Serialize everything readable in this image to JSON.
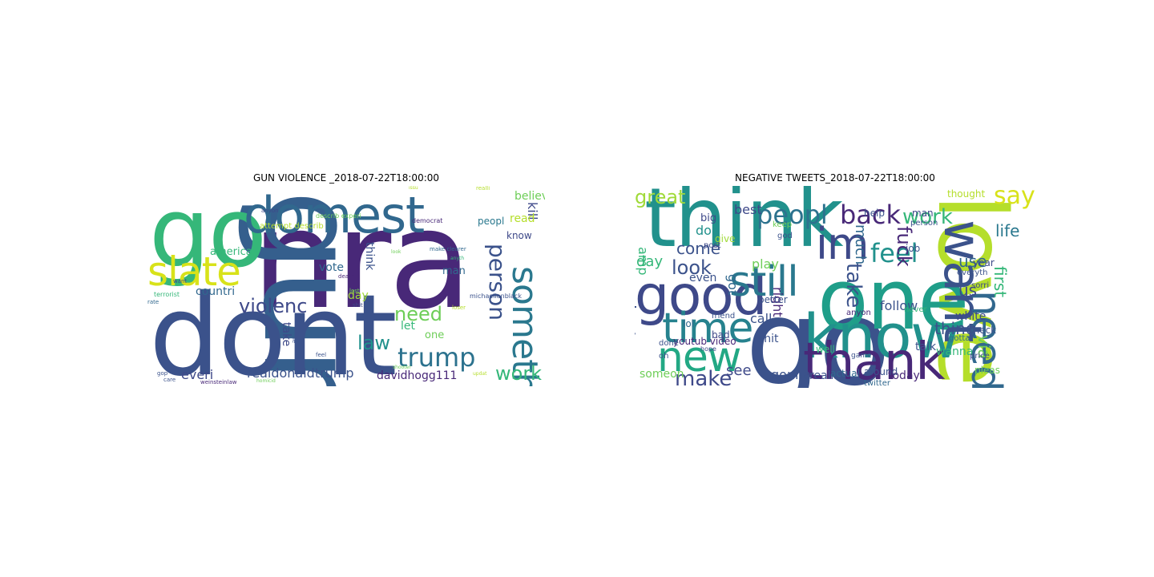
{
  "panels": [
    {
      "title": "GUN VIOLENCE _2018-07-22T18:00:00",
      "words": [
        {
          "text": "nra",
          "color": "#482878"
        },
        {
          "text": "gun",
          "color": "#355f8d"
        },
        {
          "text": "dont",
          "color": "#3b528b"
        },
        {
          "text": "go",
          "color": "#35b779"
        },
        {
          "text": "domest",
          "color": "#31688e"
        },
        {
          "text": "slate",
          "color": "#d8e219"
        },
        {
          "text": "someth",
          "color": "#2a788e"
        },
        {
          "text": "trump",
          "color": "#2c728e"
        },
        {
          "text": "violenc",
          "color": "#3e4989"
        },
        {
          "text": "person",
          "color": "#3b528b"
        },
        {
          "text": "need",
          "color": "#6ece58"
        },
        {
          "text": "law",
          "color": "#21918c"
        },
        {
          "text": "work",
          "color": "#35b779"
        },
        {
          "text": "realdonaldtrump",
          "color": "#3b528b"
        },
        {
          "text": "everi",
          "color": "#3e4989"
        },
        {
          "text": "davidhogg111",
          "color": "#482878"
        },
        {
          "text": "kill",
          "color": "#3e4989"
        },
        {
          "text": "believ",
          "color": "#6ece58"
        },
        {
          "text": "read",
          "color": "#b5de2b"
        },
        {
          "text": "peopl",
          "color": "#2a788e"
        },
        {
          "text": "know",
          "color": "#3e4989"
        },
        {
          "text": "countri",
          "color": "#31688e"
        },
        {
          "text": "america",
          "color": "#35b779"
        },
        {
          "text": "vote",
          "color": "#31688e"
        },
        {
          "text": "think",
          "color": "#3b528b"
        },
        {
          "text": "man",
          "color": "#31688e"
        },
        {
          "text": "day",
          "color": "#a0da39"
        },
        {
          "text": "let",
          "color": "#35b779"
        },
        {
          "text": "one",
          "color": "#6ece58"
        },
        {
          "text": "take",
          "color": "#3e4989"
        },
        {
          "text": "attempt describ",
          "color": "#b5de2b"
        },
        {
          "text": "describ experi",
          "color": "#6ece58"
        },
        {
          "text": "democrat",
          "color": "#482878"
        },
        {
          "text": "make clearer",
          "color": "#31688e"
        },
        {
          "text": "michaelianblack",
          "color": "#3b528b"
        },
        {
          "text": "terrorist",
          "color": "#35b779"
        },
        {
          "text": "anyon",
          "color": "#3e4989"
        },
        {
          "text": "want",
          "color": "#3e4989"
        },
        {
          "text": "death",
          "color": "#482878"
        },
        {
          "text": "lost",
          "color": "#6ece58"
        },
        {
          "text": "shit",
          "color": "#3e4989"
        },
        {
          "text": "rate",
          "color": "#31688e"
        },
        {
          "text": "gop",
          "color": "#3b528b"
        },
        {
          "text": "care",
          "color": "#3b528b"
        },
        {
          "text": "weinsteinlaw",
          "color": "#482878"
        },
        {
          "text": "homicid",
          "color": "#6ece58"
        },
        {
          "text": "feel",
          "color": "#3b528b"
        },
        {
          "text": "lie",
          "color": "#3b528b"
        },
        {
          "text": "shooter",
          "color": "#6ece58"
        },
        {
          "text": "loser",
          "color": "#b5de2b"
        },
        {
          "text": "updat",
          "color": "#b5de2b"
        },
        {
          "text": "look",
          "color": "#6ece58"
        },
        {
          "text": "anyth",
          "color": "#35b779"
        },
        {
          "text": "realli",
          "color": "#b5de2b"
        },
        {
          "text": "issu",
          "color": "#b5de2b"
        }
      ]
    },
    {
      "title": "NEGATIVE TWEETS_2018-07-22T18:00:00",
      "words": [
        {
          "text": "think",
          "color": "#21918c"
        },
        {
          "text": "love",
          "color": "#b5de2b"
        },
        {
          "text": "go",
          "color": "#3b528b"
        },
        {
          "text": "one",
          "color": "#1f9e89"
        },
        {
          "text": "know",
          "color": "#21918c"
        },
        {
          "text": "thank",
          "color": "#482878"
        },
        {
          "text": "good",
          "color": "#3e4989"
        },
        {
          "text": "new",
          "color": "#22a884"
        },
        {
          "text": "time",
          "color": "#26828e"
        },
        {
          "text": "still",
          "color": "#2a788e"
        },
        {
          "text": "im",
          "color": "#3e4989"
        },
        {
          "text": "want",
          "color": "#3b528b"
        },
        {
          "text": "need",
          "color": "#31688e"
        },
        {
          "text": "peopl",
          "color": "#2c728e"
        },
        {
          "text": "back",
          "color": "#482878"
        },
        {
          "text": "feel",
          "color": "#21918c"
        },
        {
          "text": "say",
          "color": "#d8e219"
        },
        {
          "text": "work",
          "color": "#35b779"
        },
        {
          "text": "make",
          "color": "#3e4989"
        },
        {
          "text": "great",
          "color": "#a0da39"
        },
        {
          "text": "look",
          "color": "#3b528b"
        },
        {
          "text": "come",
          "color": "#3b528b"
        },
        {
          "text": "dont",
          "color": "#3b528b"
        },
        {
          "text": "fuck",
          "color": "#482878"
        },
        {
          "text": "much",
          "color": "#31688e"
        },
        {
          "text": "take",
          "color": "#3b528b"
        },
        {
          "text": "life",
          "color": "#2a788e"
        },
        {
          "text": "use",
          "color": "#31688e"
        },
        {
          "text": "first",
          "color": "#35b779"
        },
        {
          "text": "us",
          "color": "#3e4989"
        },
        {
          "text": "thing",
          "color": "#3b528b"
        },
        {
          "text": "via",
          "color": "#6ece58"
        },
        {
          "text": "right",
          "color": "#482878"
        },
        {
          "text": "play",
          "color": "#6ece58"
        },
        {
          "text": "got",
          "color": "#31688e"
        },
        {
          "text": "day",
          "color": "#35b779"
        },
        {
          "text": "amp",
          "color": "#35b779"
        },
        {
          "text": "even",
          "color": "#3b528b"
        },
        {
          "text": "don",
          "color": "#21918c"
        },
        {
          "text": "best",
          "color": "#3e4989"
        },
        {
          "text": "see",
          "color": "#3e4989"
        },
        {
          "text": "gonna",
          "color": "#3b528b"
        },
        {
          "text": "realli",
          "color": "#3b528b"
        },
        {
          "text": "today",
          "color": "#482878"
        },
        {
          "text": "call",
          "color": "#3b528b"
        },
        {
          "text": "white",
          "color": "#3e4989"
        },
        {
          "text": "follow",
          "color": "#3b528b"
        },
        {
          "text": "wanna",
          "color": "#35b779"
        },
        {
          "text": "talk",
          "color": "#3b528b"
        },
        {
          "text": "check",
          "color": "#3b528b"
        },
        {
          "text": "year",
          "color": "#3e4989"
        },
        {
          "text": "job",
          "color": "#3b528b"
        },
        {
          "text": "man",
          "color": "#3e4989"
        },
        {
          "text": "help",
          "color": "#3b528b"
        },
        {
          "text": "thought",
          "color": "#b5de2b"
        },
        {
          "text": "someon",
          "color": "#6ece58"
        },
        {
          "text": "youtub video",
          "color": "#482878"
        },
        {
          "text": "lol",
          "color": "#31688e"
        },
        {
          "text": "bad",
          "color": "#3e4989"
        },
        {
          "text": "friend",
          "color": "#3b528b"
        },
        {
          "text": "oh",
          "color": "#3b528b"
        },
        {
          "text": "done",
          "color": "#3b528b"
        },
        {
          "text": "better",
          "color": "#3b528b"
        },
        {
          "text": "big",
          "color": "#3e4989"
        },
        {
          "text": "give",
          "color": "#a0da39"
        },
        {
          "text": "post",
          "color": "#3e4989"
        },
        {
          "text": "person",
          "color": "#3b528b"
        },
        {
          "text": "shit",
          "color": "#3b528b"
        },
        {
          "text": "anyon",
          "color": "#482878"
        },
        {
          "text": "never",
          "color": "#35b779"
        },
        {
          "text": "pleas",
          "color": "#6ece58"
        },
        {
          "text": "price",
          "color": "#3e4989"
        },
        {
          "text": "gotta",
          "color": "#31688e"
        },
        {
          "text": "sorri",
          "color": "#3e4989"
        },
        {
          "text": "well",
          "color": "#35b779"
        },
        {
          "text": "actual",
          "color": "#31688e"
        },
        {
          "text": "around",
          "color": "#3b528b"
        },
        {
          "text": "twitter",
          "color": "#31688e"
        },
        {
          "text": "everyth",
          "color": "#3b528b"
        },
        {
          "text": "god",
          "color": "#3b528b"
        },
        {
          "text": "keep",
          "color": "#6ece58"
        },
        {
          "text": "hope",
          "color": "#3e4989"
        },
        {
          "text": "game",
          "color": "#3b528b"
        },
        {
          "text": "begin",
          "color": "#6ece58"
        }
      ]
    }
  ]
}
